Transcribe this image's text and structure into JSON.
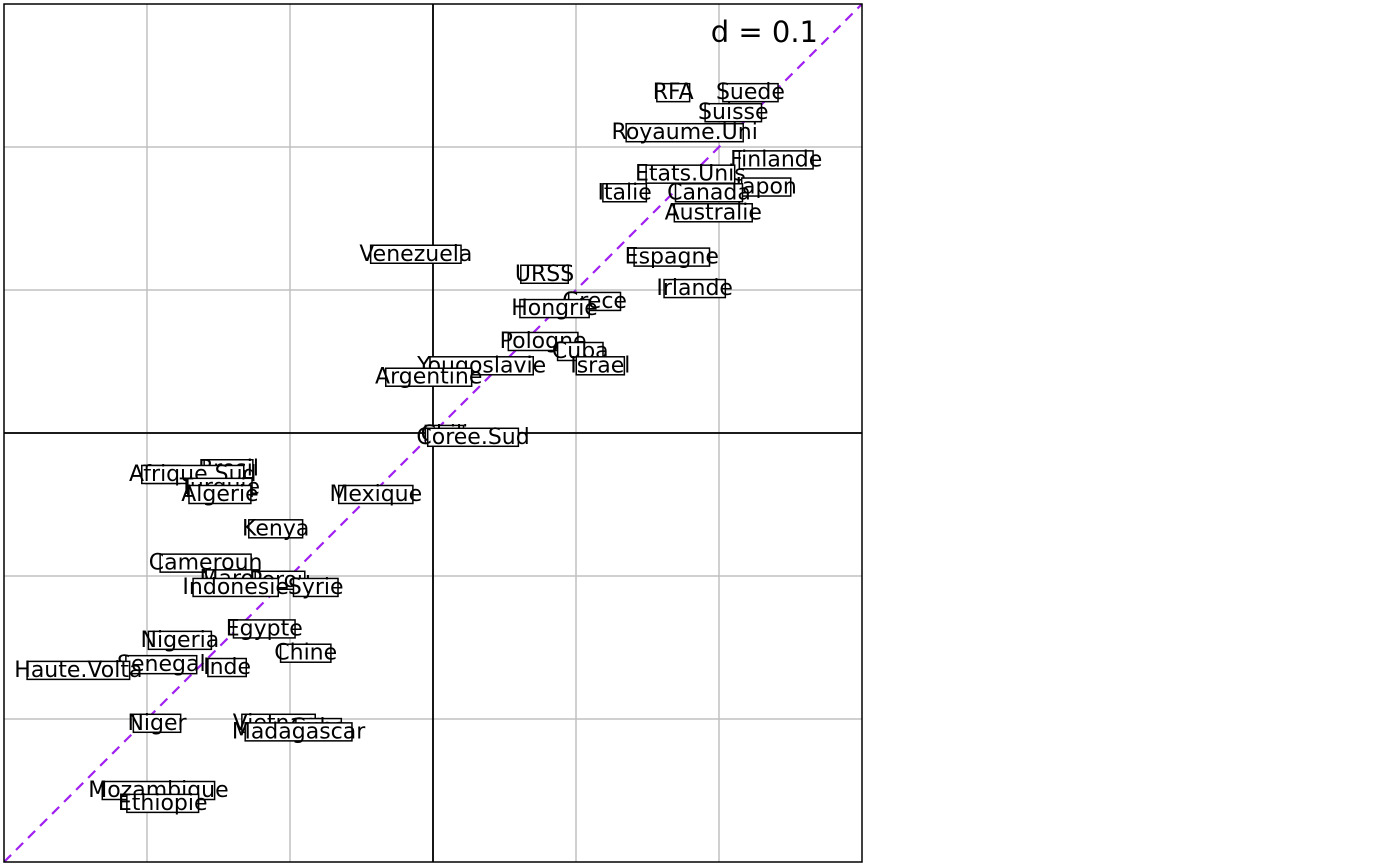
{
  "chart_data": {
    "type": "scatter",
    "d_label": "d = 0.1",
    "xlim": [
      -0.3,
      0.3
    ],
    "ylim": [
      -0.3,
      0.3
    ],
    "grid": true,
    "axes_at_origin": true,
    "reference_line": {
      "slope": 1,
      "intercept": 0,
      "style": "dashed",
      "color": "#a020f0"
    },
    "colors": {
      "grid": "#c0c0c0",
      "axes": "#000000",
      "frame": "#000000",
      "label_box": "#ffffff"
    },
    "points": [
      {
        "label": "RFA",
        "x": 0.168,
        "y": 0.238
      },
      {
        "label": "Suede",
        "x": 0.222,
        "y": 0.238
      },
      {
        "label": "Suisse",
        "x": 0.21,
        "y": 0.224
      },
      {
        "label": "Royaume.Uni",
        "x": 0.176,
        "y": 0.21
      },
      {
        "label": "Finlande",
        "x": 0.24,
        "y": 0.191
      },
      {
        "label": "Etats.Unis",
        "x": 0.18,
        "y": 0.181
      },
      {
        "label": "Japon",
        "x": 0.233,
        "y": 0.172
      },
      {
        "label": "Italie",
        "x": 0.134,
        "y": 0.168
      },
      {
        "label": "Canada",
        "x": 0.193,
        "y": 0.168
      },
      {
        "label": "Australie",
        "x": 0.196,
        "y": 0.154
      },
      {
        "label": "Venezuela",
        "x": -0.012,
        "y": 0.125
      },
      {
        "label": "Espagne",
        "x": 0.167,
        "y": 0.123
      },
      {
        "label": "URSS",
        "x": 0.078,
        "y": 0.111
      },
      {
        "label": "Irlande",
        "x": 0.183,
        "y": 0.101
      },
      {
        "label": "Grece",
        "x": 0.113,
        "y": 0.092
      },
      {
        "label": "Hongrie",
        "x": 0.085,
        "y": 0.087
      },
      {
        "label": "Pologne",
        "x": 0.077,
        "y": 0.064
      },
      {
        "label": "Cuba",
        "x": 0.103,
        "y": 0.057
      },
      {
        "label": "Yougoslavie",
        "x": 0.034,
        "y": 0.047
      },
      {
        "label": "Israel",
        "x": 0.117,
        "y": 0.047
      },
      {
        "label": "Argentine",
        "x": -0.003,
        "y": 0.039
      },
      {
        "label": "Chili",
        "x": 0.008,
        "y": -0.001
      },
      {
        "label": "Coree.Sud",
        "x": 0.028,
        "y": -0.003
      },
      {
        "label": "Bresil",
        "x": -0.143,
        "y": -0.025
      },
      {
        "label": "Iran",
        "x": -0.189,
        "y": -0.029
      },
      {
        "label": "Afrique.Sud",
        "x": -0.168,
        "y": -0.029
      },
      {
        "label": "Turquie",
        "x": -0.149,
        "y": -0.038
      },
      {
        "label": "Algerie",
        "x": -0.149,
        "y": -0.043
      },
      {
        "label": "Mexique",
        "x": -0.04,
        "y": -0.043
      },
      {
        "label": "Kenya",
        "x": -0.11,
        "y": -0.067
      },
      {
        "label": "Cameroun",
        "x": -0.159,
        "y": -0.091
      },
      {
        "label": "Maroc",
        "x": -0.14,
        "y": -0.102
      },
      {
        "label": "Perou",
        "x": -0.107,
        "y": -0.103
      },
      {
        "label": "Indonesie",
        "x": -0.138,
        "y": -0.108
      },
      {
        "label": "Syrie",
        "x": -0.082,
        "y": -0.108
      },
      {
        "label": "Egypte",
        "x": -0.118,
        "y": -0.137
      },
      {
        "label": "Nigeria",
        "x": -0.177,
        "y": -0.145
      },
      {
        "label": "Chine",
        "x": -0.089,
        "y": -0.154
      },
      {
        "label": "Senegal",
        "x": -0.19,
        "y": -0.162
      },
      {
        "label": "Inde",
        "x": -0.144,
        "y": -0.164
      },
      {
        "label": "Haute.Volta",
        "x": -0.248,
        "y": -0.166
      },
      {
        "label": "Niger",
        "x": -0.193,
        "y": -0.203
      },
      {
        "label": "Vietnam",
        "x": -0.108,
        "y": -0.203
      },
      {
        "label": "Cuba",
        "x": -0.08,
        "y": -0.206
      },
      {
        "label": "Madagascar",
        "x": -0.094,
        "y": -0.209
      },
      {
        "label": "Mozambique",
        "x": -0.192,
        "y": -0.25
      },
      {
        "label": "Ethiopie",
        "x": -0.189,
        "y": -0.259
      }
    ]
  }
}
